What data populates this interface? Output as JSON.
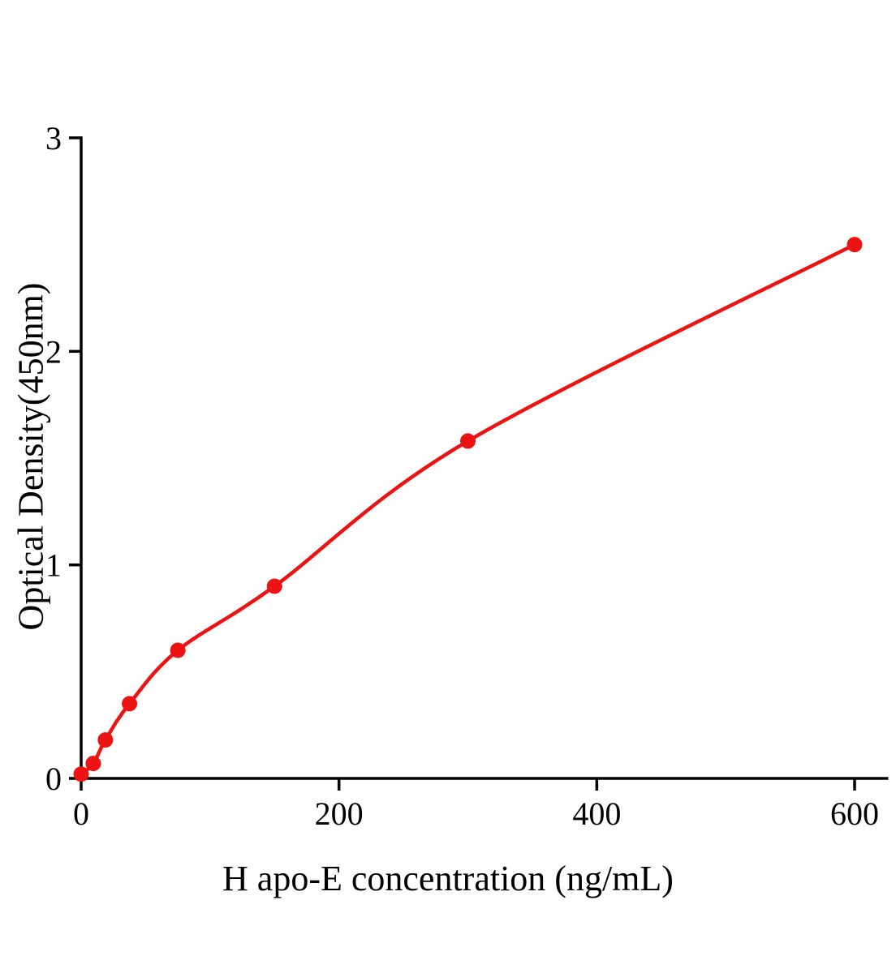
{
  "chart_data": {
    "type": "scatter",
    "title": "",
    "xlabel": "H apo-E concentration (ng/mL)",
    "ylabel": "Optical Density(450nm)",
    "x": [
      0,
      9.4,
      18.8,
      37.5,
      75,
      150,
      300,
      600
    ],
    "y": [
      0.02,
      0.07,
      0.18,
      0.35,
      0.6,
      0.9,
      1.58,
      2.5
    ],
    "xticks": [
      "0",
      "200",
      "400",
      "600"
    ],
    "xtick_values": [
      0,
      200,
      400,
      600
    ],
    "yticks": [
      "0",
      "1",
      "2",
      "3"
    ],
    "ytick_values": [
      0,
      1,
      2,
      3
    ],
    "xlim": [
      0,
      625
    ],
    "ylim": [
      0,
      3
    ],
    "line_color": "#ec1313",
    "marker_color": "#ec1313",
    "axis_color": "#000000",
    "grid": false,
    "legend": "none",
    "curve_style": "smooth-through-points"
  }
}
